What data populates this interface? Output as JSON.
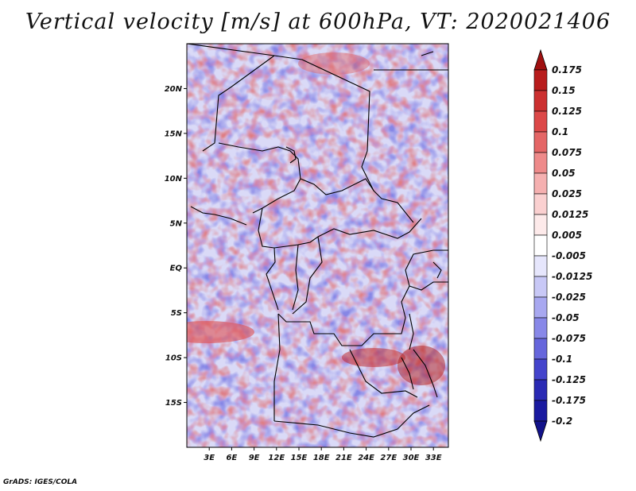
{
  "title": "Vertical velocity [m/s] at 600hPa, VT: 2020021406",
  "credit": "GrADS: IGES/COLA",
  "map": {
    "lat_range": [
      -20,
      25
    ],
    "lon_range": [
      0,
      35
    ],
    "lat_ticks": [
      {
        "value": 20,
        "label": "20N"
      },
      {
        "value": 15,
        "label": "15N"
      },
      {
        "value": 10,
        "label": "10N"
      },
      {
        "value": 5,
        "label": "5N"
      },
      {
        "value": 0,
        "label": "EQ"
      },
      {
        "value": -5,
        "label": "5S"
      },
      {
        "value": -10,
        "label": "10S"
      },
      {
        "value": -15,
        "label": "15S"
      }
    ],
    "lon_ticks": [
      {
        "value": 3,
        "label": "3E"
      },
      {
        "value": 6,
        "label": "6E"
      },
      {
        "value": 9,
        "label": "9E"
      },
      {
        "value": 12,
        "label": "12E"
      },
      {
        "value": 15,
        "label": "15E"
      },
      {
        "value": 18,
        "label": "18E"
      },
      {
        "value": 21,
        "label": "21E"
      },
      {
        "value": 24,
        "label": "24E"
      },
      {
        "value": 27,
        "label": "27E"
      },
      {
        "value": 30,
        "label": "30E"
      },
      {
        "value": 33,
        "label": "33E"
      }
    ]
  },
  "colorbar": {
    "levels": [
      {
        "label": "0.175",
        "color": "#a01010"
      },
      {
        "label": "0.15",
        "color": "#b81c1c"
      },
      {
        "label": "0.125",
        "color": "#cc3030"
      },
      {
        "label": "0.1",
        "color": "#dc4848"
      },
      {
        "label": "0.075",
        "color": "#e46666"
      },
      {
        "label": "0.05",
        "color": "#ee8a8a"
      },
      {
        "label": "0.025",
        "color": "#f5b0b0"
      },
      {
        "label": "0.0125",
        "color": "#fad0d0"
      },
      {
        "label": "0.005",
        "color": "#fdeaea"
      },
      {
        "label": "-0.005",
        "color": "#ffffff"
      },
      {
        "label": "-0.0125",
        "color": "#e6e6fc"
      },
      {
        "label": "-0.025",
        "color": "#c8c8f6"
      },
      {
        "label": "-0.05",
        "color": "#a8a8f0"
      },
      {
        "label": "-0.075",
        "color": "#8888e8"
      },
      {
        "label": "-0.1",
        "color": "#6666dc"
      },
      {
        "label": "-0.125",
        "color": "#4444cc"
      },
      {
        "label": "-0.175",
        "color": "#2a2ab4"
      },
      {
        "label": "-0.2",
        "color": "#1a1aa0"
      }
    ],
    "bottom_color": "#12128a"
  }
}
